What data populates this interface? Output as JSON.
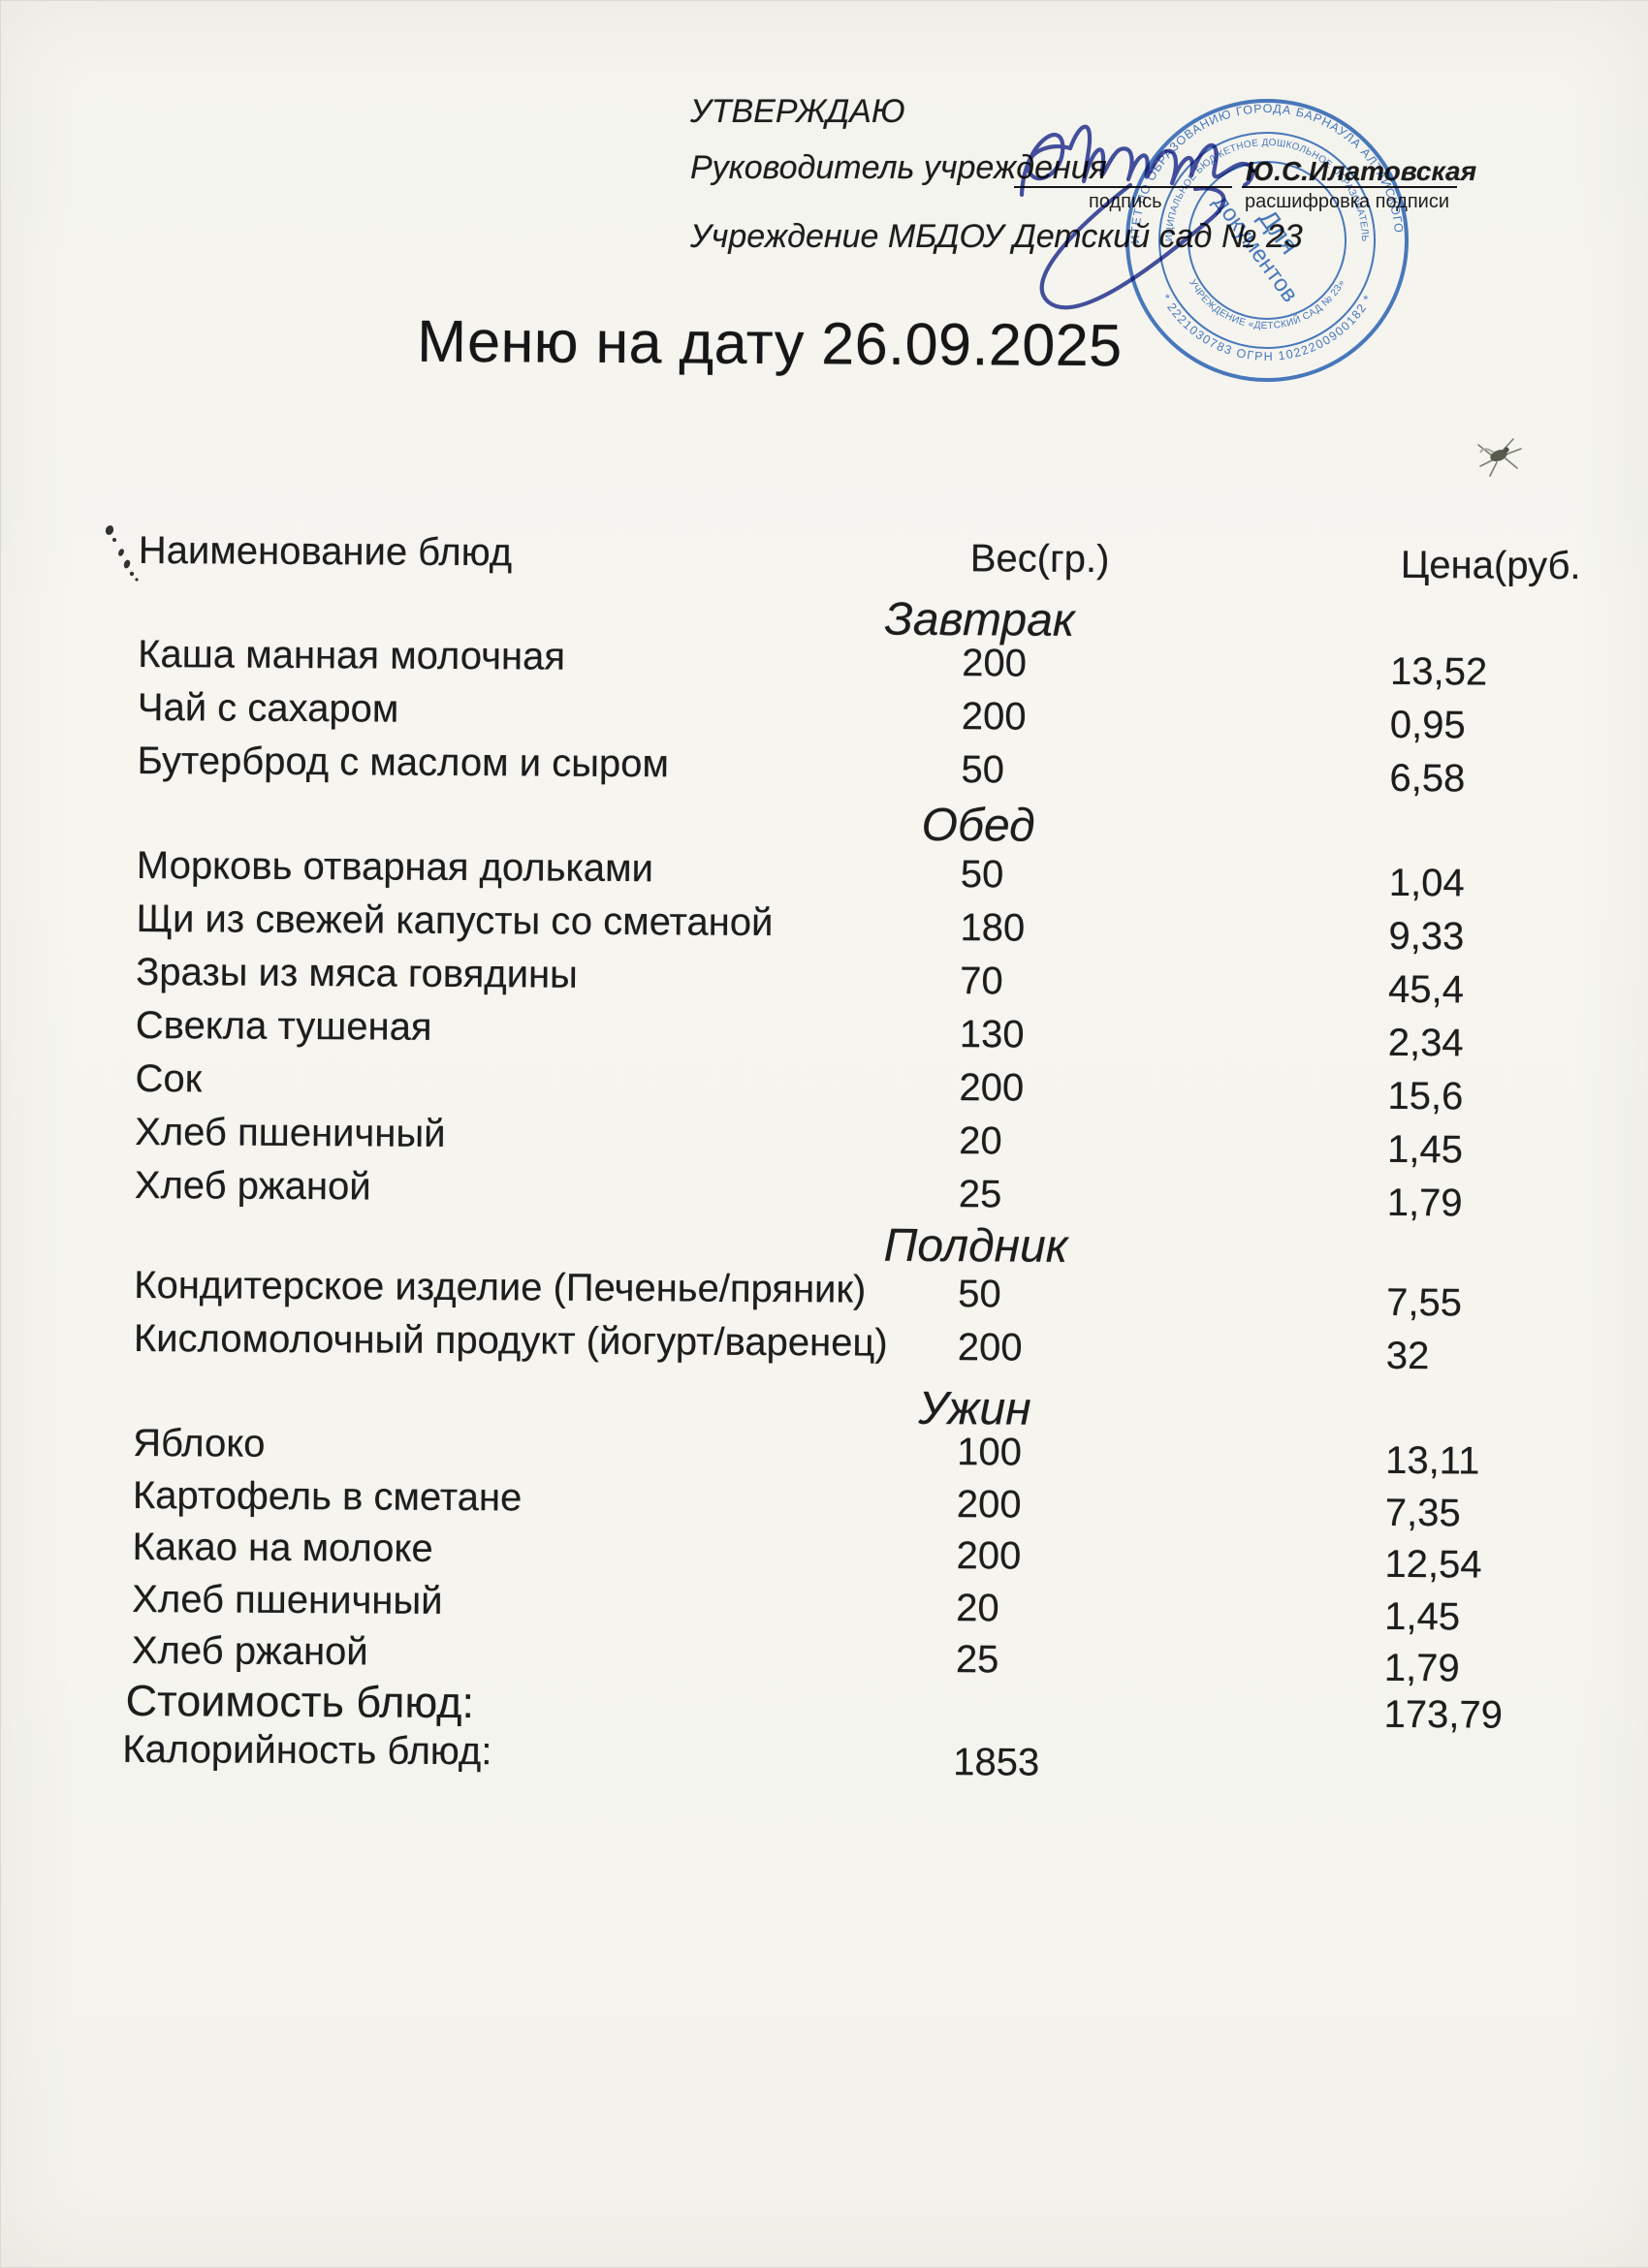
{
  "colors": {
    "paper": "#f5f4ef",
    "ink": "#1d1d1d",
    "stamp_blue": "#3b72c4",
    "signature_blue": "#323f9d"
  },
  "approval": {
    "approve": "УТВЕРЖДАЮ",
    "head_label": "Руководитель учреждения",
    "signature_name": "Ю.С.Илатовская",
    "signature_caption": "подпись",
    "decipher_caption": "расшифровка подписи",
    "institution": "Учреждение МБДОУ Детский сад № 23"
  },
  "title": "Меню на дату 26.09.2025",
  "table": {
    "headers": {
      "name": "Наименование блюд",
      "weight": "Вес(гр.)",
      "price": "Цена(руб."
    },
    "sections": [
      {
        "name": "Завтрак",
        "rows": [
          {
            "dish": "Каша манная молочная",
            "weight": "200",
            "price": "13,52"
          },
          {
            "dish": "Чай с сахаром",
            "weight": "200",
            "price": "0,95"
          },
          {
            "dish": "Бутерброд с маслом и сыром",
            "weight": "50",
            "price": "6,58"
          }
        ]
      },
      {
        "name": "Обед",
        "rows": [
          {
            "dish": "Морковь отварная дольками",
            "weight": "50",
            "price": "1,04"
          },
          {
            "dish": "Щи из свежей капусты со сметаной",
            "weight": "180",
            "price": "9,33"
          },
          {
            "dish": "Зразы из мяса говядины",
            "weight": "70",
            "price": "45,4"
          },
          {
            "dish": "Свекла тушеная",
            "weight": "130",
            "price": "2,34"
          },
          {
            "dish": "Сок",
            "weight": "200",
            "price": "15,6"
          },
          {
            "dish": "Хлеб пшеничный",
            "weight": "20",
            "price": "1,45"
          },
          {
            "dish": "Хлеб ржаной",
            "weight": "25",
            "price": "1,79"
          }
        ]
      },
      {
        "name": "Полдник",
        "rows": [
          {
            "dish": "Кондитерское изделие (Печенье/пряник)",
            "weight": "50",
            "price": "7,55"
          },
          {
            "dish": "Кисломолочный продукт (йогурт/варенец)",
            "weight": "200",
            "price": "32"
          }
        ]
      },
      {
        "name": "Ужин",
        "rows": [
          {
            "dish": "Яблоко",
            "weight": "100",
            "price": "13,11"
          },
          {
            "dish": "Картофель в сметане",
            "weight": "200",
            "price": "7,35"
          },
          {
            "dish": "Какао на молоке",
            "weight": "200",
            "price": "12,54"
          },
          {
            "dish": "Хлеб пшеничный",
            "weight": "20",
            "price": "1,45"
          },
          {
            "dish": "Хлеб ржаной",
            "weight": "25",
            "price": "1,79"
          }
        ]
      }
    ],
    "totals": {
      "cost_label": "Стоимость блюд:",
      "cost_value": "173,79",
      "calories_label": "Калорийность блюд:",
      "calories_value": "1853"
    }
  },
  "stamp": {
    "outer_top": "КОМИТЕТ ПО ОБРАЗОВАНИЮ ГОРОДА БАРНАУЛА АЛТАЙСКОГО КРАЯ",
    "outer_bottom": "* 2221030783 ОГРН 1022200900182 *",
    "middle_top": "МУНИЦИПАЛЬНОЕ БЮДЖЕТНОЕ ДОШКОЛЬНОЕ ОБРАЗОВАТЕЛЬНОЕ",
    "middle_bottom": "УЧРЕЖДЕНИЕ «ДЕТСКИЙ САД № 23»",
    "center_line1": "Для",
    "center_line2": "документов"
  }
}
